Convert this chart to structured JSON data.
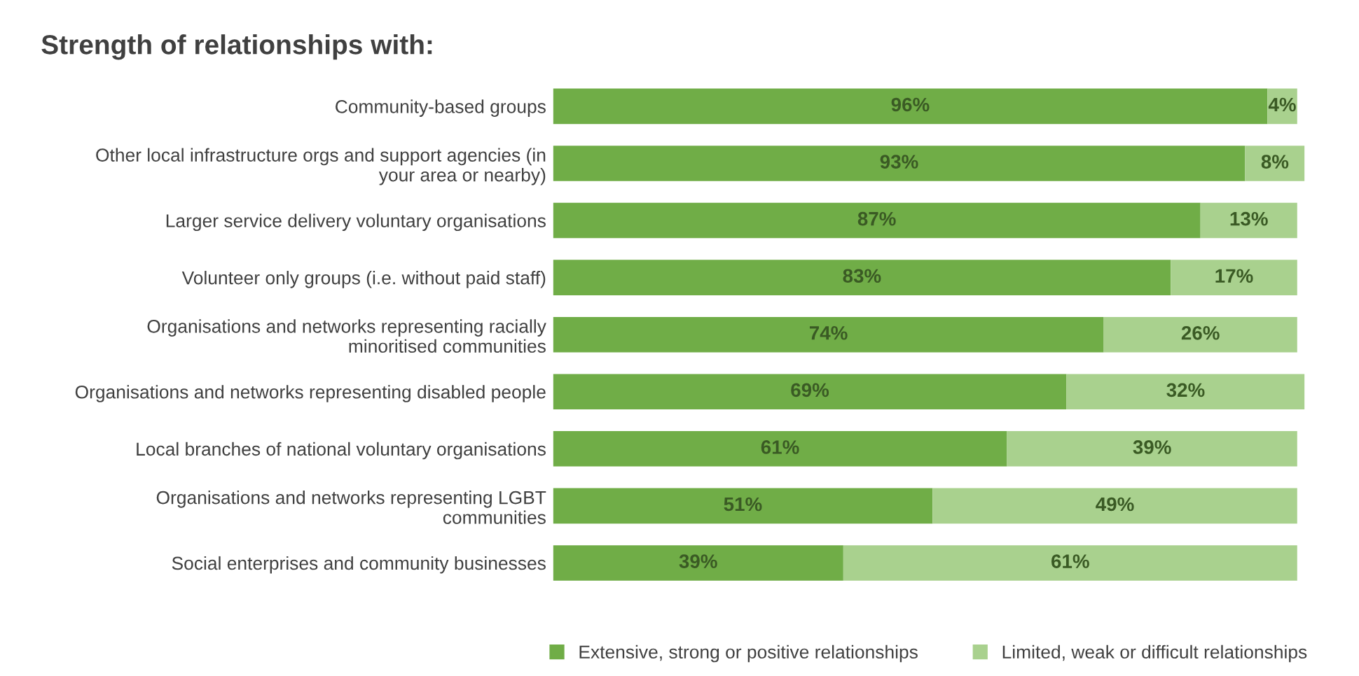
{
  "chart_data": {
    "type": "bar",
    "orientation": "horizontal",
    "stacked": true,
    "title": "Strength of relationships with:",
    "categories": [
      "Community-based groups",
      "Other local infrastructure orgs and support agencies (in\nyour area or nearby)",
      "Larger service delivery voluntary organisations",
      "Volunteer only groups (i.e. without paid staff)",
      "Organisations and networks representing racially\nminoritised communities",
      "Organisations and networks representing disabled people",
      "Local branches of national voluntary organisations",
      "Organisations and networks representing LGBT\ncommunities",
      "Social enterprises and community businesses"
    ],
    "series": [
      {
        "name": "Extensive, strong or positive relationships",
        "color": "#70ad47",
        "values": [
          96,
          93,
          87,
          83,
          74,
          69,
          61,
          51,
          39
        ],
        "value_labels": [
          "96%",
          "93%",
          "87%",
          "83%",
          "74%",
          "69%",
          "61%",
          "51%",
          "39%"
        ]
      },
      {
        "name": "Limited, weak or difficult relationships",
        "color": "#a9d18e",
        "values": [
          4,
          8,
          13,
          17,
          26,
          32,
          39,
          49,
          61
        ],
        "value_labels": [
          "4%",
          "8%",
          "13%",
          "17%",
          "26%",
          "32%",
          "39%",
          "49%",
          "61%"
        ]
      }
    ],
    "tick_labels": "y",
    "legend": "bottom"
  }
}
